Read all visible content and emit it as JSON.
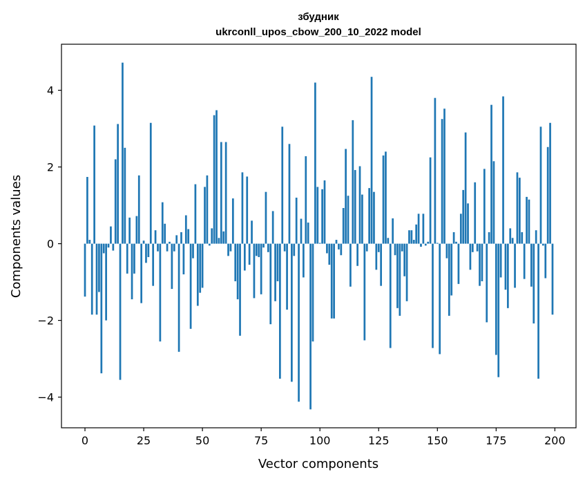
{
  "chart_data": {
    "type": "bar",
    "title_line1": "збудник",
    "title_line2": "ukrconll_upos_cbow_200_10_2022 model",
    "xlabel": "Vector components",
    "ylabel": "Components values",
    "xlim": [
      -10,
      209
    ],
    "ylim": [
      -4.8,
      5.2
    ],
    "xticks": [
      0,
      25,
      50,
      75,
      100,
      125,
      150,
      175,
      200
    ],
    "xtick_labels": [
      "0",
      "25",
      "50",
      "75",
      "100",
      "125",
      "150",
      "175",
      "200"
    ],
    "yticks": [
      -4,
      -2,
      0,
      2,
      4
    ],
    "ytick_labels": [
      "−4",
      "−2",
      "0",
      "2",
      "4"
    ],
    "bar_color": "#1f77b4",
    "x": [
      0,
      1,
      2,
      3,
      4,
      5,
      6,
      7,
      8,
      9,
      10,
      11,
      12,
      13,
      14,
      15,
      16,
      17,
      18,
      19,
      20,
      21,
      22,
      23,
      24,
      25,
      26,
      27,
      28,
      29,
      30,
      31,
      32,
      33,
      34,
      35,
      36,
      37,
      38,
      39,
      40,
      41,
      42,
      43,
      44,
      45,
      46,
      47,
      48,
      49,
      50,
      51,
      52,
      53,
      54,
      55,
      56,
      57,
      58,
      59,
      60,
      61,
      62,
      63,
      64,
      65,
      66,
      67,
      68,
      69,
      70,
      71,
      72,
      73,
      74,
      75,
      76,
      77,
      78,
      79,
      80,
      81,
      82,
      83,
      84,
      85,
      86,
      87,
      88,
      89,
      90,
      91,
      92,
      93,
      94,
      95,
      96,
      97,
      98,
      99,
      100,
      101,
      102,
      103,
      104,
      105,
      106,
      107,
      108,
      109,
      110,
      111,
      112,
      113,
      114,
      115,
      116,
      117,
      118,
      119,
      120,
      121,
      122,
      123,
      124,
      125,
      126,
      127,
      128,
      129,
      130,
      131,
      132,
      133,
      134,
      135,
      136,
      137,
      138,
      139,
      140,
      141,
      142,
      143,
      144,
      145,
      146,
      147,
      148,
      149,
      150,
      151,
      152,
      153,
      154,
      155,
      156,
      157,
      158,
      159,
      160,
      161,
      162,
      163,
      164,
      165,
      166,
      167,
      168,
      169,
      170,
      171,
      172,
      173,
      174,
      175,
      176,
      177,
      178,
      179,
      180,
      181,
      182,
      183,
      184,
      185,
      186,
      187,
      188,
      189,
      190,
      191,
      192,
      193,
      194,
      195,
      196,
      197,
      198,
      199
    ],
    "values": [
      -1.38,
      1.74,
      0.1,
      -1.85,
      3.08,
      -1.85,
      -1.26,
      -3.38,
      -0.25,
      -2.0,
      -0.1,
      0.45,
      -0.18,
      2.2,
      3.12,
      -3.55,
      4.72,
      2.5,
      -0.78,
      0.68,
      -1.45,
      -0.78,
      0.72,
      1.78,
      -1.55,
      0.08,
      -0.5,
      -0.35,
      3.15,
      -1.1,
      0.35,
      -0.2,
      -2.55,
      1.08,
      0.52,
      -0.2,
      0.05,
      -1.18,
      -0.2,
      0.22,
      -2.82,
      0.3,
      -0.8,
      0.74,
      0.38,
      -2.22,
      -0.38,
      1.55,
      -1.62,
      -1.28,
      -1.15,
      1.48,
      1.78,
      -0.05,
      0.4,
      3.35,
      3.48,
      0.15,
      2.65,
      0.32,
      2.65,
      -0.32,
      -0.2,
      1.18,
      -0.98,
      -1.45,
      -2.4,
      1.86,
      -0.7,
      1.75,
      -0.55,
      0.6,
      -1.42,
      -0.32,
      -0.35,
      -1.32,
      -0.1,
      1.35,
      -0.22,
      -2.1,
      0.85,
      -1.5,
      -0.98,
      -3.52,
      3.05,
      -0.2,
      -1.72,
      2.6,
      -3.6,
      -0.32,
      1.2,
      -4.12,
      0.65,
      -0.88,
      2.28,
      0.55,
      -4.32,
      -2.55,
      4.2,
      1.48,
      0.02,
      1.42,
      1.65,
      -0.25,
      -0.55,
      -1.95,
      -1.95,
      0.1,
      -0.15,
      -0.3,
      0.93,
      2.47,
      1.25,
      -1.12,
      3.22,
      1.92,
      -0.58,
      2.02,
      1.28,
      -2.52,
      -0.2,
      1.45,
      4.35,
      1.35,
      -0.68,
      -0.22,
      -1.1,
      2.3,
      2.4,
      0.15,
      -2.72,
      0.66,
      -0.3,
      -1.68,
      -1.88,
      -0.2,
      -0.85,
      -1.5,
      0.35,
      0.35,
      0.1,
      0.5,
      0.78,
      -0.08,
      0.78,
      -0.05,
      0.05,
      2.25,
      -2.72,
      3.8,
      0.02,
      -2.88,
      3.25,
      3.52,
      -0.38,
      -1.88,
      -1.35,
      0.3,
      0.05,
      -1.05,
      0.78,
      1.4,
      2.9,
      1.05,
      -0.68,
      -0.22,
      1.6,
      -0.2,
      -1.1,
      -0.98,
      1.95,
      -2.05,
      0.3,
      3.62,
      2.15,
      -2.9,
      -3.48,
      -0.88,
      3.84,
      -1.2,
      -1.68,
      0.4,
      0.15,
      -1.15,
      1.86,
      1.72,
      0.3,
      -0.92,
      1.22,
      1.15,
      -1.12,
      -2.08,
      0.35,
      -3.52,
      3.05,
      -0.05,
      -0.9,
      2.52,
      3.15,
      -1.85
    ]
  }
}
